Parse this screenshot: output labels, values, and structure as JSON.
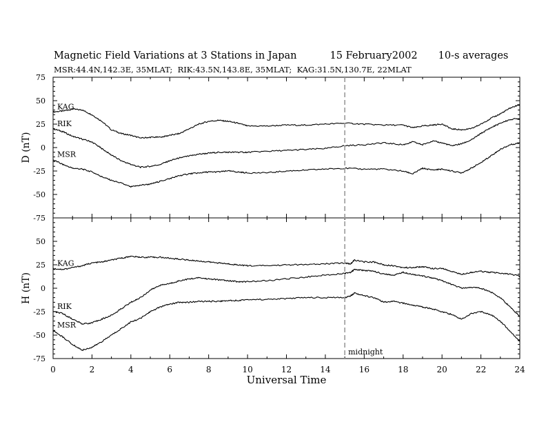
{
  "header": {
    "title": "Magnetic Field Variations at 3 Stations in Japan",
    "date": "15 February2002",
    "avg": "10-s averages",
    "subtitle": "MSR:44.4N,142.3E, 35MLAT;  RIK:43.5N,143.8E, 35MLAT;  KAG:31.5N,130.7E, 22MLAT"
  },
  "chart_data": {
    "type": "line",
    "xlabel": "Universal Time",
    "xlim": [
      0,
      24
    ],
    "xticks": [
      "0",
      "2",
      "4",
      "6",
      "8",
      "10",
      "12",
      "14",
      "16",
      "18",
      "20",
      "22",
      "24"
    ],
    "annotation": {
      "text": "midnight",
      "x": 15
    },
    "panels": [
      {
        "ylabel": "D (nT)",
        "ylim": [
          -75,
          75
        ],
        "yticks": [
          "75",
          "50",
          "25",
          "0",
          "-25",
          "-50",
          "-75"
        ],
        "series": [
          {
            "name": "KAG",
            "x": [
              0,
              0.5,
              1,
              1.5,
              2,
              2.5,
              3,
              3.5,
              4,
              4.5,
              5,
              5.5,
              6,
              6.5,
              7,
              7.5,
              8,
              8.5,
              9,
              9.5,
              10,
              11,
              12,
              13,
              14,
              15,
              16,
              17,
              18,
              18.5,
              19,
              19.5,
              20,
              20.5,
              21,
              21.5,
              22,
              22.5,
              23,
              23.5,
              24
            ],
            "y": [
              38,
              39,
              41,
              40,
              35,
              28,
              19,
              15,
              13,
              10,
              11,
              11,
              13,
              15,
              20,
              25,
              28,
              29,
              28,
              26,
              23,
              23,
              24,
              24,
              25,
              26,
              25,
              24,
              24,
              21,
              23,
              24,
              25,
              20,
              19,
              20,
              25,
              31,
              36,
              42,
              46
            ]
          },
          {
            "name": "RIK",
            "x": [
              0,
              0.5,
              1,
              1.5,
              2,
              2.5,
              3,
              3.5,
              4,
              4.5,
              5,
              5.5,
              6,
              6.5,
              7,
              7.5,
              8,
              8.5,
              9,
              9.5,
              10,
              11,
              12,
              13,
              14,
              15,
              16,
              17,
              18,
              18.5,
              19,
              19.5,
              20,
              20.5,
              21,
              21.5,
              22,
              22.5,
              23,
              23.5,
              24
            ],
            "y": [
              20,
              17,
              12,
              9,
              6,
              -1,
              -8,
              -14,
              -18,
              -21,
              -20,
              -18,
              -14,
              -11,
              -9,
              -7,
              -6,
              -5,
              -5,
              -5,
              -5,
              -4,
              -3,
              -2,
              -1,
              2,
              3,
              5,
              3,
              6,
              3,
              7,
              5,
              2,
              4,
              8,
              15,
              21,
              26,
              30,
              31
            ]
          },
          {
            "name": "MSR",
            "x": [
              0,
              0.5,
              1,
              1.5,
              2,
              2.5,
              3,
              3.5,
              4,
              4.5,
              5,
              5.5,
              6,
              6.5,
              7,
              7.5,
              8,
              8.5,
              9,
              9.5,
              10,
              11,
              12,
              13,
              14,
              15,
              16,
              17,
              18,
              18.5,
              19,
              19.5,
              20,
              20.5,
              21,
              21.5,
              22,
              22.5,
              23,
              23.5,
              24
            ],
            "y": [
              -13,
              -18,
              -22,
              -23,
              -26,
              -31,
              -35,
              -38,
              -42,
              -40,
              -39,
              -36,
              -33,
              -30,
              -28,
              -27,
              -26,
              -26,
              -25,
              -26,
              -27,
              -27,
              -25,
              -24,
              -23,
              -22,
              -23,
              -23,
              -25,
              -28,
              -22,
              -24,
              -23,
              -25,
              -27,
              -22,
              -16,
              -9,
              -2,
              3,
              5
            ]
          }
        ]
      },
      {
        "ylabel": "H (nT)",
        "ylim": [
          -75,
          75
        ],
        "yticks": [
          "75",
          "50",
          "25",
          "0",
          "-25",
          "-50",
          "-75"
        ],
        "series": [
          {
            "name": "KAG",
            "x": [
              0,
              0.5,
              1,
              1.5,
              2,
              2.5,
              3,
              3.5,
              4,
              4.5,
              5,
              5.5,
              6,
              6.5,
              7,
              7.5,
              8,
              8.5,
              9,
              9.5,
              10,
              11,
              12,
              13,
              14,
              15,
              15.3,
              15.5,
              16,
              16.5,
              17,
              17.5,
              18,
              18.5,
              19,
              19.5,
              20,
              20.5,
              21,
              21.5,
              22,
              22.5,
              23,
              23.5,
              24
            ],
            "y": [
              21,
              20,
              22,
              24,
              27,
              28,
              30,
              32,
              34,
              33,
              33,
              33,
              32,
              31,
              30,
              29,
              28,
              27,
              26,
              25,
              24,
              24,
              25,
              25,
              26,
              27,
              26,
              30,
              28,
              28,
              25,
              24,
              22,
              22,
              23,
              21,
              21,
              18,
              15,
              17,
              18,
              17,
              16,
              15,
              13
            ]
          },
          {
            "name": "RIK",
            "x": [
              0,
              0.5,
              1,
              1.5,
              2,
              2.5,
              3,
              3.5,
              4,
              4.5,
              5,
              5.5,
              6,
              6.5,
              7,
              7.5,
              8,
              8.5,
              9,
              9.5,
              10,
              11,
              12,
              13,
              14,
              15,
              15.3,
              15.5,
              16,
              16.5,
              17,
              17.5,
              18,
              18.5,
              19,
              19.5,
              20,
              20.5,
              21,
              21.5,
              22,
              22.5,
              23,
              23.5,
              24
            ],
            "y": [
              -25,
              -27,
              -33,
              -38,
              -37,
              -33,
              -29,
              -22,
              -15,
              -10,
              -2,
              3,
              5,
              8,
              10,
              11,
              10,
              9,
              8,
              7,
              7,
              8,
              10,
              12,
              14,
              16,
              17,
              20,
              19,
              18,
              15,
              14,
              17,
              15,
              13,
              11,
              8,
              4,
              0,
              1,
              0,
              -4,
              -10,
              -20,
              -30
            ]
          },
          {
            "name": "MSR",
            "x": [
              0,
              0.5,
              1,
              1.5,
              2,
              2.5,
              3,
              3.5,
              4,
              4.5,
              5,
              5.5,
              6,
              6.5,
              7,
              7.5,
              8,
              8.5,
              9,
              9.5,
              10,
              11,
              12,
              13,
              14,
              15,
              15.3,
              15.5,
              16,
              16.5,
              17,
              17.5,
              18,
              18.5,
              19,
              19.5,
              20,
              20.5,
              21,
              21.5,
              22,
              22.5,
              23,
              23.5,
              24
            ],
            "y": [
              -45,
              -52,
              -60,
              -66,
              -63,
              -57,
              -50,
              -43,
              -36,
              -32,
              -25,
              -20,
              -17,
              -15,
              -15,
              -14,
              -14,
              -14,
              -13,
              -13,
              -12,
              -12,
              -11,
              -10,
              -10,
              -10,
              -8,
              -5,
              -8,
              -10,
              -15,
              -14,
              -16,
              -18,
              -20,
              -22,
              -25,
              -28,
              -33,
              -27,
              -25,
              -28,
              -35,
              -46,
              -57
            ]
          }
        ]
      }
    ]
  }
}
